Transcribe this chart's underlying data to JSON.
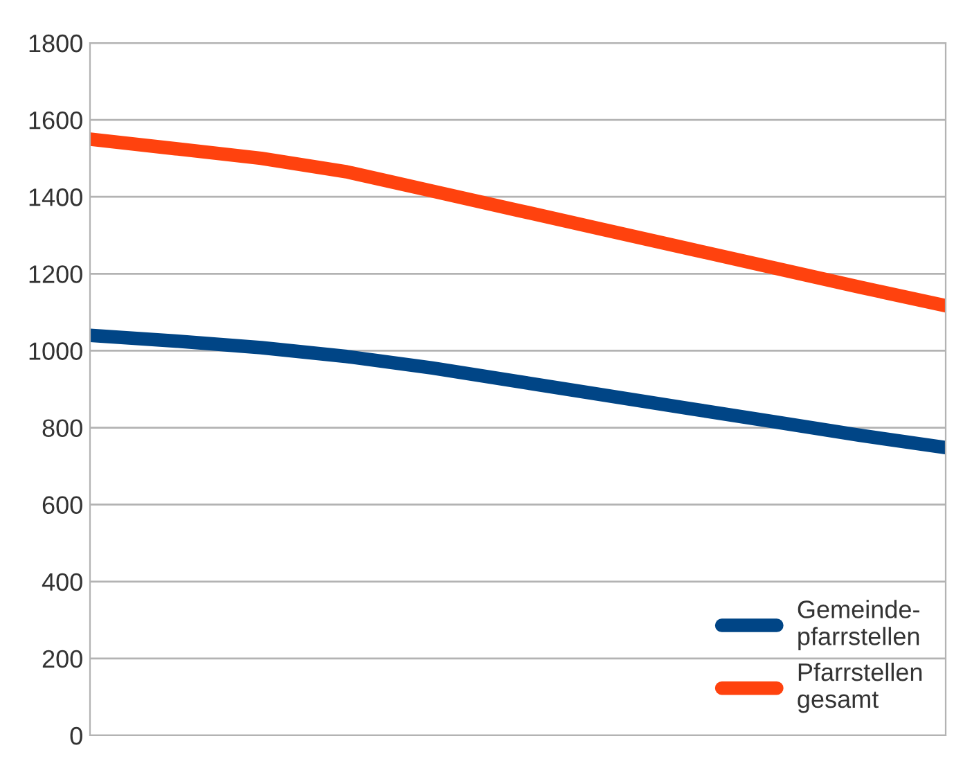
{
  "chart_data": {
    "type": "line",
    "categories": [
      null,
      null,
      null,
      null,
      null,
      null,
      null,
      null,
      null,
      null,
      null
    ],
    "series": [
      {
        "name": "Gemeinde-\npfarrstellen",
        "color": "#004586",
        "values": [
          1040,
          1025,
          1008,
          985,
          955,
          920,
          885,
          850,
          815,
          780,
          748
        ]
      },
      {
        "name": "Pfarrstellen\ngesamt",
        "color": "#ff420e",
        "values": [
          1550,
          1525,
          1500,
          1465,
          1415,
          1365,
          1315,
          1265,
          1215,
          1165,
          1117
        ]
      }
    ],
    "ylim": [
      0,
      1800
    ],
    "yticks": [
      0,
      200,
      400,
      600,
      800,
      1000,
      1200,
      1400,
      1600,
      1800
    ],
    "grid": "y",
    "legend": "bottom right",
    "tick_labels": "y",
    "marker": "none",
    "line_style": "solid"
  }
}
